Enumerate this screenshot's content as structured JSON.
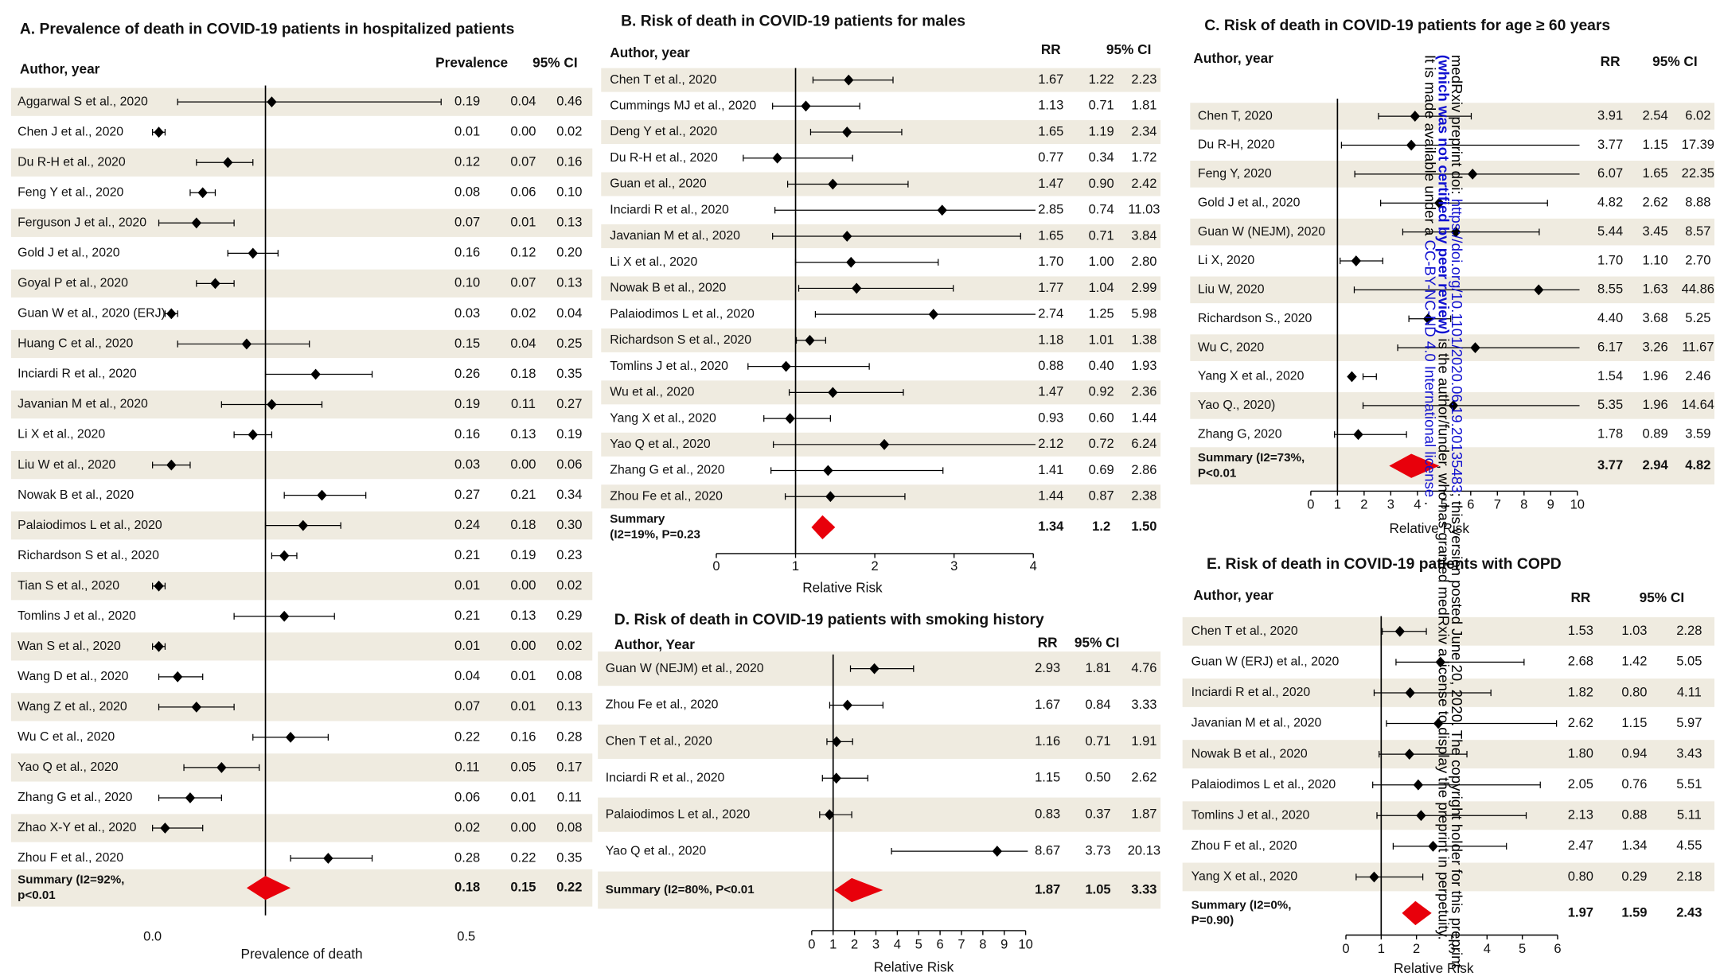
{
  "chart_data": [
    {
      "type": "forest",
      "title": "A. Prevalence of death  in COVID-19 patients in hospitalized patients",
      "author_header": "Author, year",
      "estimate_header": "Prevalence",
      "ci_header": "95% CI",
      "axis_label": "Prevalence of death",
      "xlim": [
        0,
        0.5
      ],
      "xticks": [
        {
          "value": 0,
          "label": "0.0"
        },
        {
          "value": 0.5,
          "label": "0.5"
        }
      ],
      "ref_line": 0.18,
      "axis_line": false,
      "color": "#000000",
      "summary_color": "#e8000b",
      "band_color": "#efebe0",
      "studies": [
        "Aggarwal S et al., 2020",
        "Chen J et al., 2020",
        "Du R-H et al., 2020",
        "Feng Y et al., 2020",
        "Ferguson J et al., 2020",
        "Gold J et al., 2020",
        "Goyal P et al., 2020",
        "Guan W et al., 2020 (ERJ)",
        "Huang C et al., 2020",
        "Inciardi R et al., 2020",
        "Javanian M et al., 2020",
        "Li X et al., 2020",
        "Liu W et al., 2020",
        "Nowak B et al., 2020",
        "Palaiodimos L et al., 2020",
        "Richardson S et al., 2020",
        "Tian S et al., 2020",
        "Tomlins J et al., 2020",
        "Wan S et al., 2020",
        "Wang D et al., 2020",
        "Wang Z et al., 2020",
        "Wu C et al., 2020",
        "Yao Q et al., 2020",
        "Zhang G et al., 2020",
        "Zhao X-Y et al., 2020",
        "Zhou F et al., 2020"
      ],
      "values": [
        0.19,
        0.01,
        0.12,
        0.08,
        0.07,
        0.16,
        0.1,
        0.03,
        0.15,
        0.26,
        0.19,
        0.16,
        0.03,
        0.27,
        0.24,
        0.21,
        0.01,
        0.21,
        0.01,
        0.04,
        0.07,
        0.22,
        0.11,
        0.06,
        0.02,
        0.28
      ],
      "value_labels": [
        "0.19",
        "0.01",
        "0.12",
        "0.08",
        "0.07",
        "0.16",
        "0.10",
        "0.03",
        "0.15",
        "0.26",
        "0.19",
        "0.16",
        "0.03",
        "0.27",
        "0.24",
        "0.21",
        "0.01",
        "0.21",
        "0.01",
        "0.04",
        "0.07",
        "0.22",
        "0.11",
        "0.06",
        "0.02",
        "0.28"
      ],
      "lower": [
        0.04,
        0,
        0.07,
        0.06,
        0.01,
        0.12,
        0.07,
        0.02,
        0.04,
        0.18,
        0.11,
        0.13,
        0,
        0.21,
        0.18,
        0.19,
        0,
        0.13,
        0,
        0.01,
        0.01,
        0.16,
        0.05,
        0.01,
        0,
        0.22
      ],
      "lower_labels": [
        "0.04",
        "0.00",
        "0.07",
        "0.06",
        "0.01",
        "0.12",
        "0.07",
        "0.02",
        "0.04",
        "0.18",
        "0.11",
        "0.13",
        "0.00",
        "0.21",
        "0.18",
        "0.19",
        "0.00",
        "0.13",
        "0.00",
        "0.01",
        "0.01",
        "0.16",
        "0.05",
        "0.01",
        "0.00",
        "0.22"
      ],
      "upper": [
        0.46,
        0.02,
        0.16,
        0.1,
        0.13,
        0.2,
        0.13,
        0.04,
        0.25,
        0.35,
        0.27,
        0.19,
        0.06,
        0.34,
        0.3,
        0.23,
        0.02,
        0.29,
        0.02,
        0.08,
        0.13,
        0.28,
        0.17,
        0.11,
        0.08,
        0.35
      ],
      "upper_labels": [
        "0.46",
        "0.02",
        "0.16",
        "0.10",
        "0.13",
        "0.20",
        "0.13",
        "0.04",
        "0.25",
        "0.35",
        "0.27",
        "0.19",
        "0.06",
        "0.34",
        "0.30",
        "0.23",
        "0.02",
        "0.29",
        "0.02",
        "0.08",
        "0.13",
        "0.28",
        "0.17",
        "0.11",
        "0.08",
        "0.35"
      ],
      "summary": {
        "label": [
          "Summary (I2=92%,",
          "p<0.01"
        ],
        "value": 0.18,
        "value_label": "0.18",
        "lower": 0.15,
        "lower_label": "0.15",
        "upper": 0.22,
        "upper_label": "0.22"
      }
    },
    {
      "type": "forest",
      "title": "B. Risk of death  in COVID-19 patients for males",
      "author_header": "Author, year",
      "estimate_header": "RR",
      "ci_header": "95% CI",
      "axis_label": "Relative Risk",
      "xlim": [
        0,
        4
      ],
      "xticks": [
        0,
        1,
        2,
        3,
        4
      ],
      "ref_line": 1,
      "axis_line": true,
      "color": "#000000",
      "summary_color": "#e8000b",
      "band_color": "#efebe0",
      "studies": [
        "Chen T et al., 2020",
        "Cummings MJ et al., 2020",
        "Deng Y et al., 2020",
        "Du R-H et al., 2020",
        "Guan et al., 2020",
        "Inciardi R et al., 2020",
        "Javanian M et al., 2020",
        "Li X et al., 2020",
        "Nowak B et al., 2020",
        "Palaiodimos L et al., 2020",
        "Richardson S et al., 2020",
        "Tomlins J et al., 2020",
        "Wu et al., 2020",
        "Yang X et al., 2020",
        "Yao Q et al., 2020",
        "Zhang G et al., 2020",
        "Zhou Fe et al., 2020"
      ],
      "values": [
        1.67,
        1.13,
        1.65,
        0.77,
        1.47,
        2.85,
        1.65,
        1.7,
        1.77,
        2.74,
        1.18,
        0.88,
        1.47,
        0.93,
        2.12,
        1.41,
        1.44
      ],
      "value_labels": [
        "1.67",
        "1.13",
        "1.65",
        "0.77",
        "1.47",
        "2.85",
        "1.65",
        "1.70",
        "1.77",
        "2.74",
        "1.18",
        "0.88",
        "1.47",
        "0.93",
        "2.12",
        "1.41",
        "1.44"
      ],
      "lower": [
        1.22,
        0.71,
        1.19,
        0.34,
        0.9,
        0.74,
        0.71,
        1,
        1.04,
        1.25,
        1.01,
        0.4,
        0.92,
        0.6,
        0.72,
        0.69,
        0.87
      ],
      "lower_labels": [
        "1.22",
        "0.71",
        "1.19",
        "0.34",
        "0.90",
        "0.74",
        "0.71",
        "1.00",
        "1.04",
        "1.25",
        "1.01",
        "0.40",
        "0.92",
        "0.60",
        "0.72",
        "0.69",
        "0.87"
      ],
      "upper": [
        2.23,
        1.81,
        2.34,
        1.72,
        2.42,
        11.03,
        3.84,
        2.8,
        2.99,
        5.98,
        1.38,
        1.93,
        2.36,
        1.44,
        6.24,
        2.86,
        2.38
      ],
      "upper_labels": [
        "2.23",
        "1.81",
        "2.34",
        "1.72",
        "2.42",
        "11.03",
        "3.84",
        "2.80",
        "2.99",
        "5.98",
        "1.38",
        "1.93",
        "2.36",
        "1.44",
        "6.24",
        "2.86",
        "2.38"
      ],
      "summary": {
        "label": [
          "Summary",
          "(I2=19%, P=0.23"
        ],
        "value": 1.34,
        "value_label": "1.34",
        "lower": 1.2,
        "lower_label": "1.2",
        "upper": 1.5,
        "upper_label": "1.50"
      }
    },
    {
      "type": "forest",
      "title": "C.   Risk of death in COVID-19 patients  for age ≥ 60 years",
      "author_header": "Author, year",
      "estimate_header": "RR",
      "ci_header": "95% CI",
      "axis_label": "Relative Risk",
      "xlim": [
        0,
        10
      ],
      "xticks": [
        0,
        1,
        2,
        3,
        4,
        5,
        6,
        7,
        8,
        9,
        10
      ],
      "ref_line": 1,
      "axis_line": true,
      "color": "#000000",
      "summary_color": "#e8000b",
      "band_color": "#efebe0",
      "studies": [
        "Chen T, 2020",
        "Du R-H, 2020",
        "Feng Y, 2020",
        "Gold J et al., 2020",
        "Guan W (NEJM), 2020",
        "Li X, 2020",
        "Liu W, 2020",
        "Richardson S., 2020",
        "Wu C, 2020",
        "Yang X et al., 2020",
        "Yao Q., 2020)",
        "Zhang G, 2020"
      ],
      "values": [
        3.91,
        3.77,
        6.07,
        4.82,
        5.44,
        1.7,
        8.55,
        4.4,
        6.17,
        1.54,
        5.35,
        1.78
      ],
      "value_labels": [
        "3.91",
        "3.77",
        "6.07",
        "4.82",
        "5.44",
        "1.70",
        "8.55",
        "4.40",
        "6.17",
        "1.54",
        "5.35",
        "1.78"
      ],
      "lower": [
        2.54,
        1.15,
        1.65,
        2.62,
        3.45,
        1.1,
        1.63,
        3.68,
        3.26,
        1.96,
        1.96,
        0.89
      ],
      "lower_labels": [
        "2.54",
        "1.15",
        "1.65",
        "2.62",
        "3.45",
        "1.10",
        "1.63",
        "3.68",
        "3.26",
        "1.96",
        "1.96",
        "0.89"
      ],
      "upper": [
        6.02,
        17.39,
        22.35,
        8.88,
        8.57,
        2.7,
        44.86,
        5.25,
        11.67,
        2.46,
        14.64,
        3.59
      ],
      "upper_labels": [
        "6.02",
        "17.39",
        "22.35",
        "8.88",
        "8.57",
        "2.70",
        "44.86",
        "5.25",
        "11.67",
        "2.46",
        "14.64",
        "3.59"
      ],
      "summary": {
        "label": [
          "Summary (I2=73%,",
          "P<0.01"
        ],
        "value": 3.77,
        "value_label": "3.77",
        "lower": 2.94,
        "lower_label": "2.94",
        "upper": 4.82,
        "upper_label": "4.82"
      }
    },
    {
      "type": "forest",
      "title": "D. Risk of death in COVID-19 patients with smoking history",
      "author_header": "Author, Year",
      "estimate_header": "RR",
      "ci_header": "95% CI",
      "axis_label": "Relative Risk",
      "xlim": [
        0,
        10
      ],
      "xticks": [
        0,
        1,
        2,
        3,
        4,
        5,
        6,
        7,
        8,
        9,
        10
      ],
      "ref_line": 1,
      "axis_line": true,
      "color": "#000000",
      "summary_color": "#e8000b",
      "band_color": "#efebe0",
      "studies": [
        "Guan W (NEJM) et al., 2020",
        "Zhou Fe et al., 2020",
        "Chen T et al., 2020",
        "Inciardi R et al., 2020",
        "Palaiodimos L et al., 2020",
        "Yao Q et al., 2020"
      ],
      "values": [
        2.93,
        1.67,
        1.16,
        1.15,
        0.83,
        8.67
      ],
      "value_labels": [
        "2.93",
        "1.67",
        "1.16",
        "1.15",
        "0.83",
        "8.67"
      ],
      "lower": [
        1.81,
        0.84,
        0.71,
        0.5,
        0.37,
        3.73
      ],
      "lower_labels": [
        "1.81",
        "0.84",
        "0.71",
        "0.50",
        "0.37",
        "3.73"
      ],
      "upper": [
        4.76,
        3.33,
        1.91,
        2.62,
        1.87,
        20.13
      ],
      "upper_labels": [
        "4.76",
        "3.33",
        "1.91",
        "2.62",
        "1.87",
        "20.13"
      ],
      "summary": {
        "label": [
          "Summary (I2=80%, P<0.01"
        ],
        "value": 1.87,
        "value_label": "1.87",
        "lower": 1.05,
        "lower_label": "1.05",
        "upper": 3.33,
        "upper_label": "3.33"
      }
    },
    {
      "type": "forest",
      "title": "E. Risk of death in COVID-19 patients with COPD",
      "author_header": "Author, year",
      "estimate_header": "RR",
      "ci_header": "95% CI",
      "axis_label": "Relative Risk",
      "xlim": [
        0,
        6
      ],
      "xticks": [
        0,
        1,
        2,
        3,
        4,
        5,
        6
      ],
      "ref_line": 1,
      "axis_line": true,
      "color": "#000000",
      "summary_color": "#e8000b",
      "band_color": "#efebe0",
      "studies": [
        "Chen T et al., 2020",
        "Guan W (ERJ) et al., 2020",
        "Inciardi R et al., 2020",
        "Javanian M et al., 2020",
        "Nowak B et al., 2020",
        "Palaiodimos L et al., 2020",
        "Tomlins J et al., 2020",
        "Zhou F et al., 2020",
        "Yang X et al., 2020"
      ],
      "values": [
        1.53,
        2.68,
        1.82,
        2.62,
        1.8,
        2.05,
        2.13,
        2.47,
        0.8
      ],
      "value_labels": [
        "1.53",
        "2.68",
        "1.82",
        "2.62",
        "1.80",
        "2.05",
        "2.13",
        "2.47",
        "0.80"
      ],
      "lower": [
        1.03,
        1.42,
        0.8,
        1.15,
        0.94,
        0.76,
        0.88,
        1.34,
        0.29
      ],
      "lower_labels": [
        "1.03",
        "1.42",
        "0.80",
        "1.15",
        "0.94",
        "0.76",
        "0.88",
        "1.34",
        "0.29"
      ],
      "upper": [
        2.28,
        5.05,
        4.11,
        5.97,
        3.43,
        5.51,
        5.11,
        4.55,
        2.18
      ],
      "upper_labels": [
        "2.28",
        "5.05",
        "4.11",
        "5.97",
        "3.43",
        "5.51",
        "5.11",
        "4.55",
        "2.18"
      ],
      "summary": {
        "label": [
          "Summary (I2=0%,",
          "P=0.90)"
        ],
        "value": 1.97,
        "value_label": "1.97",
        "lower": 1.59,
        "lower_label": "1.59",
        "upper": 2.43,
        "upper_label": "2.43"
      }
    }
  ],
  "watermark": {
    "lines": [
      [
        {
          "text": "medRxiv preprint doi: ",
          "color": "#000000"
        },
        {
          "text": "https://doi.org/10.1101/2020.06.19.20135483",
          "color": "#1010d0"
        },
        {
          "text": "; this version posted June 20, 2020. The copyright holder for this preprint",
          "color": "#000000"
        }
      ],
      [
        {
          "text": "(which was not certified by peer review)",
          "color": "#1010d0"
        },
        {
          "text": " is the author/funder, who has granted medRxiv a license to display the preprint in perpetuity.",
          "color": "#000000"
        }
      ],
      [
        {
          "text": "It is made available under a ",
          "color": "#000000"
        },
        {
          "text": "CC-BY-NC-ND 4.0 International license",
          "color": "#1010d0"
        },
        {
          "text": " .",
          "color": "#000000"
        }
      ]
    ]
  }
}
